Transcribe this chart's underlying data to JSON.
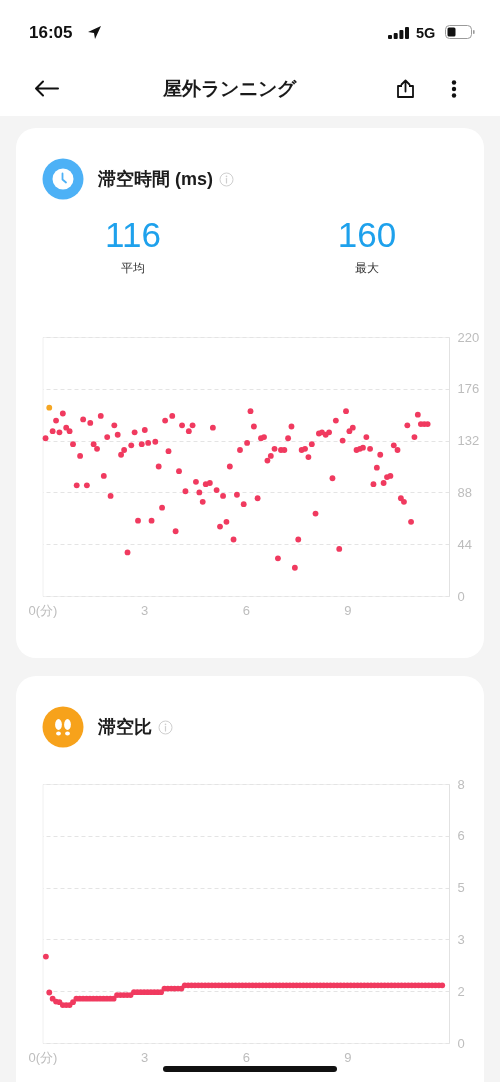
{
  "chart_data": [
    {
      "type": "other",
      "title": "屋外ランニング",
      "annotations": [
        "16:05",
        "5G"
      ]
    },
    {
      "type": "scatter",
      "title": "滞空時間 (ms)",
      "annotations": [
        "116",
        "平均",
        "160",
        "最大"
      ],
      "x": [
        0.09,
        0.2,
        0.3,
        0.4,
        0.5,
        0.6,
        0.7,
        0.8,
        0.9,
        1.01,
        1.11,
        1.2,
        1.31,
        1.41,
        1.51,
        1.61,
        1.72,
        1.81,
        1.91,
        2.01,
        2.12,
        2.22,
        2.32,
        2.41,
        2.51,
        2.62,
        2.72,
        2.82,
        2.93,
        3.02,
        3.12,
        3.22,
        3.33,
        3.43,
        3.53,
        3.62,
        3.72,
        3.83,
        3.93,
        4.03,
        4.12,
        4.22,
        4.32,
        4.43,
        4.53,
        4.63,
        4.73,
        4.82,
        4.94,
        5.03,
        5.14,
        5.24,
        5.33,
        5.43,
        5.53,
        5.64,
        5.74,
        5.83,
        5.94,
        6.04,
        6.14,
        6.24,
        6.35,
        6.45,
        6.54,
        6.64,
        6.74,
        6.85,
        6.95,
        7.04,
        7.14,
        7.25,
        7.35,
        7.45,
        7.55,
        7.65,
        7.75,
        7.85,
        7.95,
        8.06,
        8.16,
        8.25,
        8.36,
        8.46,
        8.56,
        8.66,
        8.76,
        8.86,
        8.96,
        9.06,
        9.16,
        9.27,
        9.37,
        9.46,
        9.56,
        9.67,
        9.77,
        9.87,
        9.97,
        10.07,
        10.17,
        10.27,
        10.37,
        10.48,
        10.58,
        10.67,
        10.77,
        10.88,
        10.98,
        11.08,
        11.17,
        11.27,
        11.37
      ],
      "values": [
        134,
        160,
        140,
        149,
        139,
        155,
        143,
        140,
        129,
        94,
        119,
        150,
        94,
        147,
        129,
        125,
        153,
        102,
        135,
        85,
        145,
        137,
        120,
        124,
        37,
        128,
        139,
        64,
        129,
        141,
        130,
        64,
        131,
        110,
        75,
        149,
        123,
        153,
        55,
        106,
        145,
        89,
        140,
        145,
        97,
        88,
        80,
        95,
        96,
        143,
        90,
        59,
        85,
        63,
        110,
        48,
        86,
        124,
        78,
        130,
        157,
        144,
        83,
        134,
        135,
        115,
        119,
        125,
        32,
        124,
        124,
        134,
        144,
        24,
        48,
        124,
        125,
        118,
        129,
        70,
        138,
        139,
        137,
        139,
        100,
        149,
        40,
        132,
        157,
        140,
        143,
        124,
        125,
        126,
        135,
        125,
        95,
        109,
        120,
        96,
        101,
        102,
        128,
        124,
        83,
        80,
        145,
        63,
        135,
        154,
        146,
        146,
        146
      ],
      "colors": [
        "#f03a5f",
        "#f5a623",
        "#f03a5f",
        "#f03a5f",
        "#f03a5f",
        "#f03a5f",
        "#f03a5f",
        "#f03a5f",
        "#f03a5f",
        "#f03a5f",
        "#f03a5f",
        "#f03a5f",
        "#f03a5f",
        "#f03a5f",
        "#f03a5f",
        "#f03a5f",
        "#f03a5f",
        "#f03a5f",
        "#f03a5f",
        "#f03a5f",
        "#f03a5f",
        "#f03a5f",
        "#f03a5f",
        "#f03a5f",
        "#f03a5f",
        "#f03a5f",
        "#f03a5f",
        "#f03a5f",
        "#f03a5f",
        "#f03a5f",
        "#f03a5f",
        "#f03a5f",
        "#f03a5f",
        "#f03a5f",
        "#f03a5f",
        "#f03a5f",
        "#f03a5f",
        "#f03a5f",
        "#f03a5f",
        "#f03a5f",
        "#f03a5f",
        "#f03a5f",
        "#f03a5f",
        "#f03a5f",
        "#f03a5f",
        "#f03a5f",
        "#f03a5f",
        "#f03a5f",
        "#f03a5f",
        "#f03a5f",
        "#f03a5f",
        "#f03a5f",
        "#f03a5f",
        "#f03a5f",
        "#f03a5f",
        "#f03a5f",
        "#f03a5f",
        "#f03a5f",
        "#f03a5f",
        "#f03a5f",
        "#f03a5f",
        "#f03a5f",
        "#f03a5f",
        "#f03a5f",
        "#f03a5f",
        "#f03a5f",
        "#f03a5f",
        "#f03a5f",
        "#f03a5f",
        "#f03a5f",
        "#f03a5f",
        "#f03a5f",
        "#f03a5f",
        "#f03a5f",
        "#f03a5f",
        "#f03a5f",
        "#f03a5f",
        "#f03a5f",
        "#f03a5f",
        "#f03a5f",
        "#f03a5f",
        "#f03a5f",
        "#f03a5f",
        "#f03a5f",
        "#f03a5f",
        "#f03a5f",
        "#f03a5f",
        "#f03a5f",
        "#f03a5f",
        "#f03a5f",
        "#f03a5f",
        "#f03a5f",
        "#f03a5f",
        "#f03a5f",
        "#f03a5f",
        "#f03a5f",
        "#f03a5f",
        "#f03a5f",
        "#f03a5f",
        "#f03a5f",
        "#f03a5f",
        "#f03a5f",
        "#f03a5f",
        "#f03a5f",
        "#f03a5f",
        "#f03a5f",
        "#f03a5f",
        "#f03a5f",
        "#f03a5f",
        "#f03a5f",
        "#f03a5f",
        "#f03a5f",
        "#f03a5f"
      ],
      "xlim": [
        0,
        12
      ],
      "xticks": [
        {
          "value": 0,
          "label": "0(分)"
        },
        3,
        6,
        9
      ],
      "ylim": [
        0,
        220
      ],
      "yticks": [
        0,
        44,
        88,
        132,
        176,
        220
      ],
      "grid": "y",
      "marker": "circle"
    },
    {
      "type": "scatter",
      "title": "滞空比",
      "x": [
        0.1,
        0.2,
        0.3,
        0.4,
        0.5,
        0.6,
        0.7,
        0.8,
        0.9,
        1,
        1.1,
        1.2,
        1.3,
        1.4,
        1.5,
        1.6,
        1.7,
        1.8,
        1.9,
        2,
        2.1,
        2.2,
        2.3,
        2.4,
        2.5,
        2.6,
        2.7,
        2.8,
        2.9,
        3,
        3.1,
        3.2,
        3.3,
        3.4,
        3.5,
        3.6,
        3.7,
        3.8,
        3.9,
        4,
        4.1,
        4.2,
        4.3,
        4.4,
        4.5,
        4.6,
        4.7,
        4.8,
        4.9,
        5,
        5.1,
        5.2,
        5.3,
        5.4,
        5.5,
        5.6,
        5.7,
        5.8,
        5.9,
        6,
        6.1,
        6.2,
        6.3,
        6.4,
        6.5,
        6.6,
        6.7,
        6.8,
        6.9,
        7,
        7.1,
        7.2,
        7.3,
        7.4,
        7.5,
        7.6,
        7.7,
        7.8,
        7.9,
        8,
        8.1,
        8.2,
        8.3,
        8.4,
        8.5,
        8.6,
        8.7,
        8.8,
        8.9,
        9,
        9.1,
        9.2,
        9.3,
        9.4,
        9.5,
        9.6,
        9.7,
        9.8,
        9.9,
        10,
        10.1,
        10.2,
        10.3,
        10.4,
        10.5,
        10.6,
        10.7,
        10.8,
        10.9,
        11,
        11.1,
        11.2,
        11.3,
        11.4,
        11.5,
        11.6,
        11.7,
        11.8
      ],
      "values": [
        2.67,
        1.56,
        1.37,
        1.28,
        1.26,
        1.17,
        1.17,
        1.17,
        1.26,
        1.37,
        1.37,
        1.37,
        1.37,
        1.37,
        1.37,
        1.37,
        1.37,
        1.37,
        1.37,
        1.37,
        1.37,
        1.48,
        1.48,
        1.48,
        1.48,
        1.48,
        1.57,
        1.57,
        1.57,
        1.57,
        1.57,
        1.57,
        1.57,
        1.57,
        1.57,
        1.68,
        1.68,
        1.68,
        1.68,
        1.68,
        1.68,
        1.78,
        1.78,
        1.78,
        1.78,
        1.78,
        1.78,
        1.78,
        1.78,
        1.78,
        1.78,
        1.78,
        1.78,
        1.78,
        1.78,
        1.78,
        1.78,
        1.78,
        1.78,
        1.78,
        1.78,
        1.78,
        1.78,
        1.78,
        1.78,
        1.78,
        1.78,
        1.78,
        1.78,
        1.78,
        1.78,
        1.78,
        1.78,
        1.78,
        1.78,
        1.78,
        1.78,
        1.78,
        1.78,
        1.78,
        1.78,
        1.78,
        1.78,
        1.78,
        1.78,
        1.78,
        1.78,
        1.78,
        1.78,
        1.78,
        1.78,
        1.78,
        1.78,
        1.78,
        1.78,
        1.78,
        1.78,
        1.78,
        1.78,
        1.78,
        1.78,
        1.78,
        1.78,
        1.78,
        1.78,
        1.78,
        1.78,
        1.78,
        1.78,
        1.78,
        1.78,
        1.78,
        1.78,
        1.78,
        1.78,
        1.78,
        1.78,
        1.78
      ],
      "color": "#f03a5f",
      "xlim": [
        0,
        12
      ],
      "xticks": [
        {
          "value": 0,
          "label": "0(分)"
        },
        3,
        6,
        9
      ],
      "ylim": [
        0,
        8
      ],
      "yticks": [
        0,
        {
          "value": 1.6,
          "label": "2"
        },
        {
          "value": 3.2,
          "label": "3"
        },
        {
          "value": 4.8,
          "label": "5"
        },
        {
          "value": 6.4,
          "label": "6"
        },
        8
      ],
      "grid": "y",
      "marker": "circle"
    }
  ]
}
